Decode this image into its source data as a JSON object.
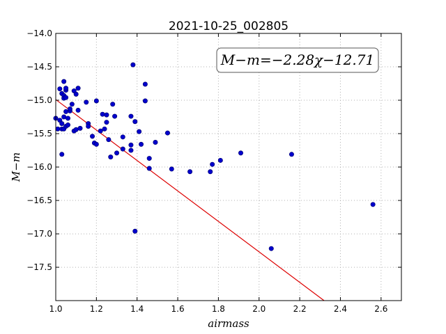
{
  "chart_data": {
    "type": "scatter",
    "title": "2021-10-25_002805",
    "xlabel": "airmass",
    "ylabel": "M−m",
    "annotation": "M−m=−2.28χ−12.71",
    "xlim": [
      1.0,
      2.7
    ],
    "ylim": [
      -17.999,
      -14.0
    ],
    "y_inverted": true,
    "grid": true,
    "x_ticks": [
      1.0,
      1.2,
      1.4,
      1.6,
      1.8,
      2.0,
      2.2,
      2.4,
      2.6
    ],
    "x_tick_labels": [
      "1.0",
      "1.2",
      "1.4",
      "1.6",
      "1.8",
      "2.0",
      "2.2",
      "2.4",
      "2.6"
    ],
    "y_ticks": [
      -14.0,
      -14.5,
      -15.0,
      -15.5,
      -16.0,
      -16.5,
      -17.0,
      -17.5
    ],
    "y_tick_labels": [
      "−14.0",
      "−14.5",
      "−15.0",
      "−15.5",
      "−16.0",
      "−16.5",
      "−17.0",
      "−17.5"
    ],
    "fit": {
      "slope": -2.28,
      "intercept": -12.71
    },
    "colors": {
      "points": "#0000cc",
      "point_edge": "#000066",
      "fit_line": "#dd0000",
      "grid": "#b0b0b0"
    },
    "series": [
      {
        "values": [
          {
            "x": 1.0,
            "y": -15.27
          },
          {
            "x": 1.01,
            "y": -15.43
          },
          {
            "x": 1.02,
            "y": -15.3
          },
          {
            "x": 1.02,
            "y": -14.83
          },
          {
            "x": 1.03,
            "y": -14.9
          },
          {
            "x": 1.03,
            "y": -15.35
          },
          {
            "x": 1.03,
            "y": -15.43
          },
          {
            "x": 1.03,
            "y": -15.81
          },
          {
            "x": 1.04,
            "y": -14.93
          },
          {
            "x": 1.04,
            "y": -14.97
          },
          {
            "x": 1.04,
            "y": -15.25
          },
          {
            "x": 1.04,
            "y": -15.43
          },
          {
            "x": 1.04,
            "y": -14.72
          },
          {
            "x": 1.05,
            "y": -14.96
          },
          {
            "x": 1.05,
            "y": -14.85
          },
          {
            "x": 1.05,
            "y": -14.82
          },
          {
            "x": 1.05,
            "y": -15.17
          },
          {
            "x": 1.05,
            "y": -15.39
          },
          {
            "x": 1.06,
            "y": -15.27
          },
          {
            "x": 1.06,
            "y": -15.37
          },
          {
            "x": 1.07,
            "y": -15.16
          },
          {
            "x": 1.07,
            "y": -15.13
          },
          {
            "x": 1.08,
            "y": -15.06
          },
          {
            "x": 1.09,
            "y": -14.86
          },
          {
            "x": 1.09,
            "y": -15.46
          },
          {
            "x": 1.1,
            "y": -14.91
          },
          {
            "x": 1.1,
            "y": -15.44
          },
          {
            "x": 1.11,
            "y": -14.82
          },
          {
            "x": 1.11,
            "y": -15.15
          },
          {
            "x": 1.12,
            "y": -15.42
          },
          {
            "x": 1.15,
            "y": -15.03
          },
          {
            "x": 1.16,
            "y": -15.35
          },
          {
            "x": 1.16,
            "y": -15.39
          },
          {
            "x": 1.18,
            "y": -15.54
          },
          {
            "x": 1.19,
            "y": -15.64
          },
          {
            "x": 1.2,
            "y": -15.66
          },
          {
            "x": 1.2,
            "y": -15.01
          },
          {
            "x": 1.22,
            "y": -15.46
          },
          {
            "x": 1.23,
            "y": -15.21
          },
          {
            "x": 1.24,
            "y": -15.43
          },
          {
            "x": 1.25,
            "y": -15.22
          },
          {
            "x": 1.25,
            "y": -15.33
          },
          {
            "x": 1.26,
            "y": -15.59
          },
          {
            "x": 1.27,
            "y": -15.85
          },
          {
            "x": 1.28,
            "y": -15.06
          },
          {
            "x": 1.29,
            "y": -15.24
          },
          {
            "x": 1.3,
            "y": -15.79
          },
          {
            "x": 1.33,
            "y": -15.55
          },
          {
            "x": 1.33,
            "y": -15.73
          },
          {
            "x": 1.37,
            "y": -15.24
          },
          {
            "x": 1.37,
            "y": -15.75
          },
          {
            "x": 1.37,
            "y": -15.67
          },
          {
            "x": 1.38,
            "y": -14.47
          },
          {
            "x": 1.39,
            "y": -15.32
          },
          {
            "x": 1.39,
            "y": -16.96
          },
          {
            "x": 1.41,
            "y": -15.47
          },
          {
            "x": 1.42,
            "y": -15.66
          },
          {
            "x": 1.44,
            "y": -15.01
          },
          {
            "x": 1.44,
            "y": -14.76
          },
          {
            "x": 1.46,
            "y": -15.87
          },
          {
            "x": 1.46,
            "y": -16.02
          },
          {
            "x": 1.49,
            "y": -15.63
          },
          {
            "x": 1.55,
            "y": -15.49
          },
          {
            "x": 1.57,
            "y": -16.03
          },
          {
            "x": 1.66,
            "y": -16.07
          },
          {
            "x": 1.76,
            "y": -16.07
          },
          {
            "x": 1.77,
            "y": -15.96
          },
          {
            "x": 1.81,
            "y": -15.9
          },
          {
            "x": 1.91,
            "y": -15.79
          },
          {
            "x": 2.06,
            "y": -17.22
          },
          {
            "x": 2.16,
            "y": -15.81
          },
          {
            "x": 2.56,
            "y": -16.56
          }
        ]
      }
    ]
  }
}
